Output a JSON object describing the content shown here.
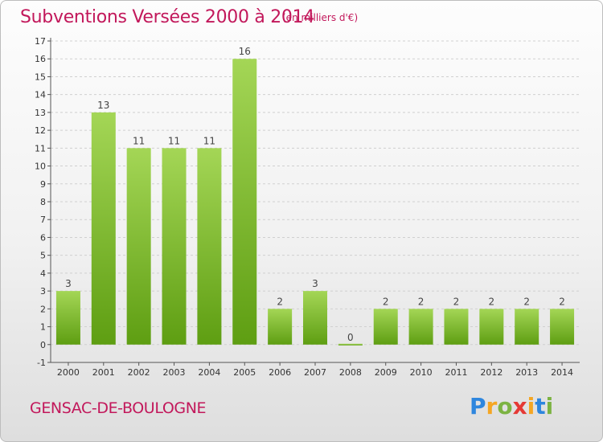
{
  "title": "Subventions Versées 2000 à 2014",
  "subtitle": "(en milliers d'€)",
  "commune": "GENSAC-DE-BOULOGNE",
  "logo": {
    "letters": [
      "P",
      "r",
      "o",
      "x",
      "i",
      "t",
      "i"
    ],
    "colors": [
      "#2e86de",
      "#f5a623",
      "#7cb342",
      "#e53935",
      "#f5a623",
      "#2e86de",
      "#7cb342"
    ]
  },
  "colors": {
    "bar_light": "#a4d656",
    "bar_dark": "#5e9e12",
    "text_accent": "#c2185b"
  },
  "chart_data": {
    "type": "bar",
    "categories": [
      "2000",
      "2001",
      "2002",
      "2003",
      "2004",
      "2005",
      "2006",
      "2007",
      "2008",
      "2009",
      "2010",
      "2011",
      "2012",
      "2013",
      "2014"
    ],
    "values": [
      3,
      13,
      11,
      11,
      11,
      16,
      2,
      3,
      0,
      2,
      2,
      2,
      2,
      2,
      2
    ],
    "data_labels": [
      "3",
      "13",
      "11",
      "11",
      "11",
      "16",
      "2",
      "3",
      "0",
      "2",
      "2",
      "2",
      "2",
      "2",
      "2"
    ],
    "yticks": [
      "-1",
      "0",
      "1",
      "2",
      "3",
      "4",
      "5",
      "6",
      "7",
      "8",
      "9",
      "10",
      "11",
      "12",
      "13",
      "14",
      "15",
      "16",
      "17"
    ],
    "ylim": [
      -1,
      17
    ],
    "grid": "horizontal"
  }
}
